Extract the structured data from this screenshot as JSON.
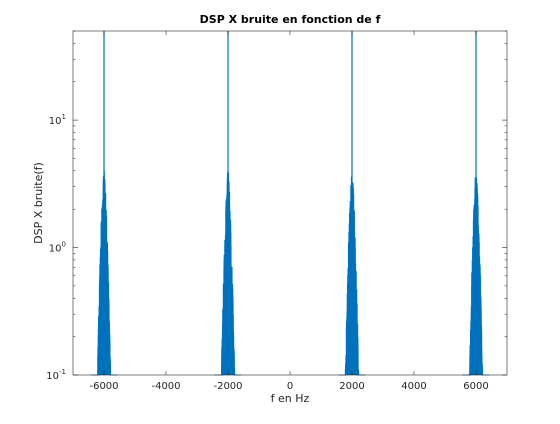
{
  "chart_data": {
    "type": "line",
    "title": "DSP X bruite en fonction de f",
    "xlabel": "f en Hz",
    "ylabel": "DSP X bruite(f)",
    "xlim": [
      -7000,
      7000
    ],
    "ylim": [
      0.1,
      50
    ],
    "yscale": "log",
    "grid": false,
    "x_ticks": [
      -6000,
      -4000,
      -2000,
      0,
      2000,
      4000,
      6000
    ],
    "x_tick_labels": [
      "-6000",
      "-4000",
      "-2000",
      "0",
      "2000",
      "4000",
      "6000"
    ],
    "y_ticks": [
      0.1,
      1,
      10
    ],
    "y_tick_labels": [
      {
        "base": "10",
        "exp": "-1"
      },
      {
        "base": "10",
        "exp": "0"
      },
      {
        "base": "10",
        "exp": "1"
      }
    ],
    "series": [
      {
        "color": "#0072bd",
        "peaks": [
          {
            "f": -6000,
            "peak": 50,
            "spread": 180
          },
          {
            "f": -2000,
            "peak": 50,
            "spread": 180
          },
          {
            "f": 2000,
            "peak": 50,
            "spread": 180
          },
          {
            "f": 6000,
            "peak": 50,
            "spread": 180
          }
        ]
      }
    ]
  }
}
